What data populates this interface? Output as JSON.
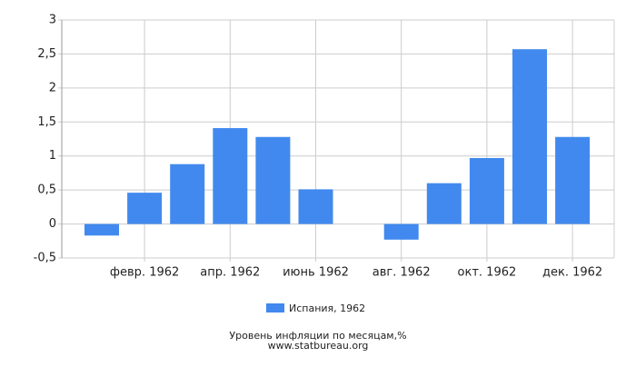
{
  "chart_data": {
    "type": "bar",
    "categories": [
      null,
      "февр. 1962",
      null,
      "апр. 1962",
      null,
      "июнь 1962",
      null,
      "авг. 1962",
      null,
      "окт. 1962",
      null,
      "дек. 1962"
    ],
    "series": [
      {
        "name": "Испания, 1962",
        "color": "#4189ee",
        "values": [
          -0.17,
          0.46,
          0.88,
          1.41,
          1.28,
          0.51,
          0,
          -0.23,
          0.6,
          0.97,
          2.57,
          1.28
        ]
      }
    ],
    "ylim": [
      -0.5,
      3
    ],
    "yticks": [
      {
        "value": -0.5,
        "label": "-0,5"
      },
      0,
      {
        "value": 0.5,
        "label": "0,5"
      },
      1,
      {
        "value": 1.5,
        "label": "1,5"
      },
      2,
      {
        "value": 2.5,
        "label": "2,5"
      },
      3
    ],
    "grid": true,
    "footer": [
      "Уровень инфляции по месяцам,%",
      "www.statbureau.org"
    ]
  }
}
